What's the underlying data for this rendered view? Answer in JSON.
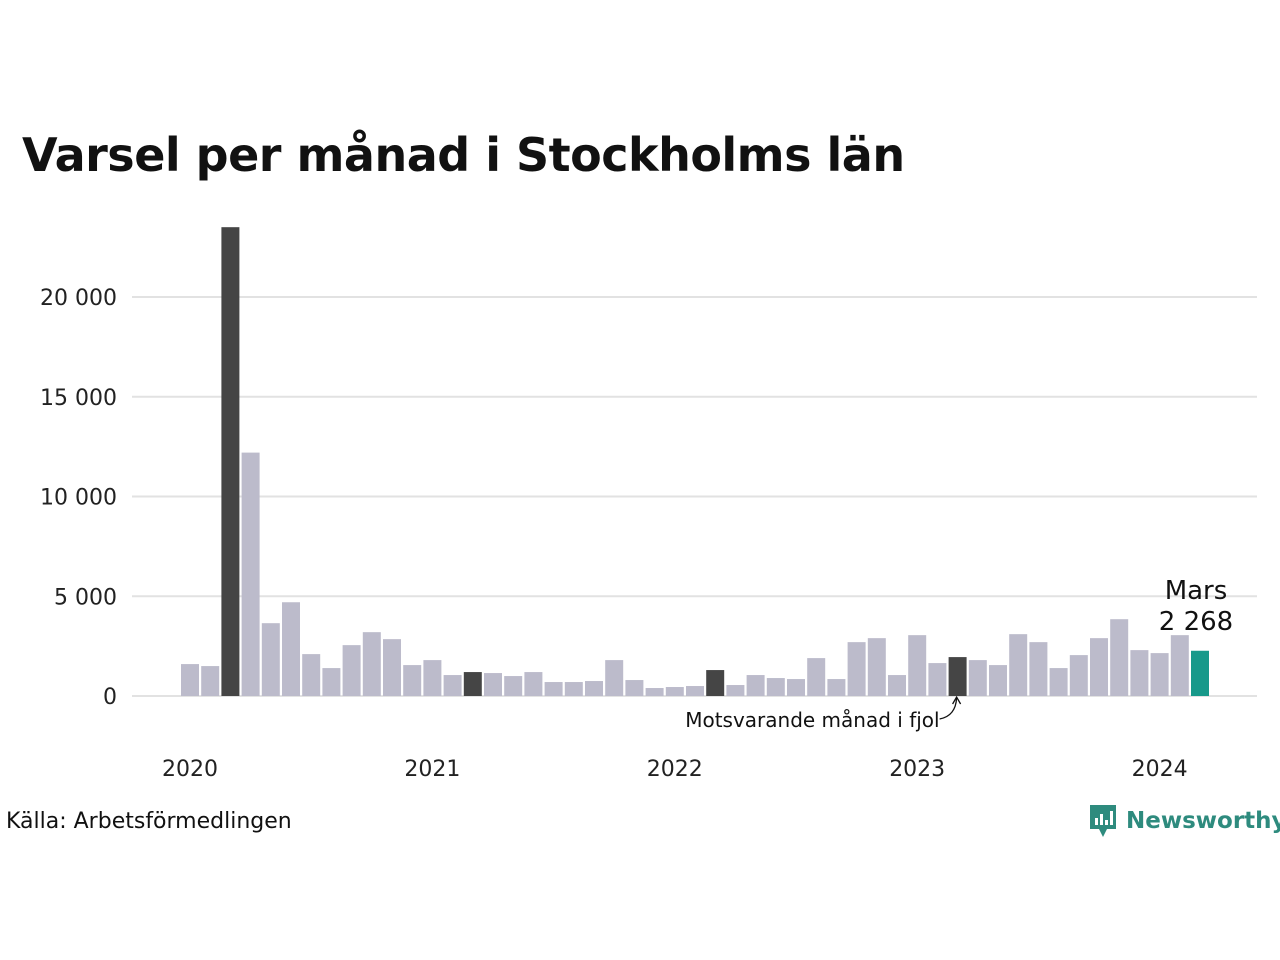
{
  "chart_data": {
    "type": "bar",
    "title": "Varsel per månad i Stockholms län",
    "xlabel": "",
    "ylabel": "",
    "ylim": [
      0,
      23500
    ],
    "yticks": [
      0,
      5000,
      10000,
      15000,
      20000
    ],
    "ytick_labels": [
      "0",
      "5 000",
      "10 000",
      "15 000",
      "20 000"
    ],
    "year_ticks": [
      {
        "label": "2020",
        "index": 0
      },
      {
        "label": "2021",
        "index": 12
      },
      {
        "label": "2022",
        "index": 24
      },
      {
        "label": "2023",
        "index": 36
      },
      {
        "label": "2024",
        "index": 48
      }
    ],
    "grid": true,
    "categories": [
      "2020-01",
      "2020-02",
      "2020-03",
      "2020-04",
      "2020-05",
      "2020-06",
      "2020-07",
      "2020-08",
      "2020-09",
      "2020-10",
      "2020-11",
      "2020-12",
      "2021-01",
      "2021-02",
      "2021-03",
      "2021-04",
      "2021-05",
      "2021-06",
      "2021-07",
      "2021-08",
      "2021-09",
      "2021-10",
      "2021-11",
      "2021-12",
      "2022-01",
      "2022-02",
      "2022-03",
      "2022-04",
      "2022-05",
      "2022-06",
      "2022-07",
      "2022-08",
      "2022-09",
      "2022-10",
      "2022-11",
      "2022-12",
      "2023-01",
      "2023-02",
      "2023-03",
      "2023-04",
      "2023-05",
      "2023-06",
      "2023-07",
      "2023-08",
      "2023-09",
      "2023-10",
      "2023-11",
      "2023-12",
      "2024-01",
      "2024-02",
      "2024-03"
    ],
    "values": [
      1600,
      1500,
      23500,
      12200,
      3650,
      4700,
      2100,
      1400,
      2550,
      3200,
      2850,
      1550,
      1800,
      1050,
      1200,
      1150,
      1000,
      1200,
      700,
      700,
      750,
      1800,
      800,
      400,
      450,
      500,
      1300,
      550,
      1050,
      900,
      850,
      1900,
      850,
      2700,
      2900,
      1050,
      3050,
      1650,
      1950,
      1800,
      1550,
      3100,
      2700,
      1400,
      2050,
      2900,
      3850,
      2300,
      2150,
      3050,
      2268
    ],
    "highlight_indices": [
      2,
      14,
      26,
      38
    ],
    "current_index": 50,
    "current_label": {
      "month": "Mars",
      "value": "2 268"
    },
    "note": "Motsvarande månad i fjol",
    "colors": {
      "default": "#bcbbcb",
      "highlight": "#454545",
      "current": "#17998a",
      "grid": "#e2e2e2"
    }
  },
  "footer": {
    "source": "Källa: Arbetsförmedlingen",
    "brand": "Newsworthy",
    "brand_icon": "newsworthy-logo-icon"
  }
}
